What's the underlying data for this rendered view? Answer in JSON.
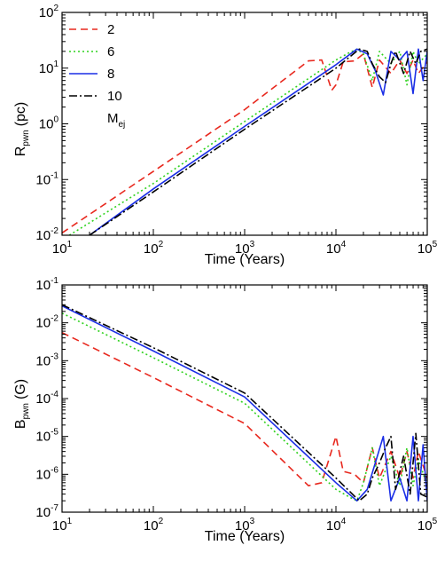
{
  "chart_data": [
    {
      "type": "line",
      "title": "",
      "xlabel": "Time (Years)",
      "ylabel": {
        "main": "R",
        "sub": "pwn",
        "unit": "(pc)"
      },
      "xscale": "log",
      "yscale": "log",
      "xlim": [
        10,
        100000
      ],
      "ylim": [
        0.01,
        100
      ],
      "xticks": [
        {
          "base": "10",
          "exp": "1",
          "value": 10
        },
        {
          "base": "10",
          "exp": "2",
          "value": 100
        },
        {
          "base": "10",
          "exp": "3",
          "value": 1000
        },
        {
          "base": "10",
          "exp": "4",
          "value": 10000
        },
        {
          "base": "10",
          "exp": "5",
          "value": 100000
        }
      ],
      "yticks": [
        {
          "base": "10",
          "exp": "-2",
          "value": 0.01
        },
        {
          "base": "10",
          "exp": "-1",
          "value": 0.1
        },
        {
          "base": "10",
          "exp": "0",
          "value": 1
        },
        {
          "base": "10",
          "exp": "1",
          "value": 10
        },
        {
          "base": "10",
          "exp": "2",
          "value": 100
        }
      ],
      "legend": {
        "placement": "top-left",
        "title": {
          "main": "M",
          "sub": "ej"
        }
      },
      "series": [
        {
          "name": "2",
          "color": "#e8281e",
          "dash": "dashed",
          "x": [
            10,
            100,
            1000,
            5000,
            7000,
            9000,
            10000,
            12000,
            16000,
            20000,
            25000,
            30000,
            40000,
            50000,
            60000,
            70000,
            80000,
            100000
          ],
          "y": [
            0.011,
            0.14,
            1.8,
            13.5,
            14,
            4,
            5,
            13,
            13.5,
            18,
            4.5,
            14,
            8,
            14,
            8,
            14,
            8,
            13
          ]
        },
        {
          "name": "6",
          "color": "#2fd21e",
          "dash": "dotted",
          "x": [
            12,
            100,
            1000,
            10000,
            14000,
            17000,
            20000,
            25000,
            30000,
            40000,
            50000,
            60000,
            70000,
            80000,
            100000
          ],
          "y": [
            0.01,
            0.085,
            1.1,
            14,
            19,
            22,
            18,
            6,
            20,
            12,
            20,
            5,
            20,
            12,
            18
          ]
        },
        {
          "name": "8",
          "color": "#1a2ee6",
          "dash": "solid",
          "x": [
            20,
            100,
            1000,
            10000,
            17000,
            22000,
            27000,
            33000,
            40000,
            50000,
            60000,
            70000,
            80000,
            90000,
            100000
          ],
          "y": [
            0.01,
            0.068,
            0.9,
            11.5,
            22,
            18,
            9,
            3.3,
            20,
            14,
            20,
            3.5,
            22,
            6,
            20
          ]
        },
        {
          "name": "10",
          "color": "#000000",
          "dash": "dashdot",
          "x": [
            20,
            100,
            1000,
            10000,
            18000,
            22000,
            25000,
            30000,
            35000,
            40000,
            45000,
            55000,
            65000,
            75000,
            85000,
            100000
          ],
          "y": [
            0.01,
            0.06,
            0.8,
            10,
            22,
            20,
            12,
            7,
            5.5,
            12,
            20,
            8,
            20,
            12,
            20,
            22
          ]
        }
      ]
    },
    {
      "type": "line",
      "title": "",
      "xlabel": "Time (Years)",
      "ylabel": {
        "main": "B",
        "sub": "pwn",
        "unit": "(G)"
      },
      "xscale": "log",
      "yscale": "log",
      "xlim": [
        10,
        100000
      ],
      "ylim": [
        1e-07,
        0.1
      ],
      "xticks": [
        {
          "base": "10",
          "exp": "1",
          "value": 10
        },
        {
          "base": "10",
          "exp": "2",
          "value": 100
        },
        {
          "base": "10",
          "exp": "3",
          "value": 1000
        },
        {
          "base": "10",
          "exp": "4",
          "value": 10000
        },
        {
          "base": "10",
          "exp": "5",
          "value": 100000
        }
      ],
      "yticks": [
        {
          "base": "10",
          "exp": "-7",
          "value": 1e-07
        },
        {
          "base": "10",
          "exp": "-6",
          "value": 1e-06
        },
        {
          "base": "10",
          "exp": "-5",
          "value": 1e-05
        },
        {
          "base": "10",
          "exp": "-4",
          "value": 0.0001
        },
        {
          "base": "10",
          "exp": "-3",
          "value": 0.001
        },
        {
          "base": "10",
          "exp": "-2",
          "value": 0.01
        },
        {
          "base": "10",
          "exp": "-1",
          "value": 0.1
        }
      ],
      "series": [
        {
          "name": "2",
          "color": "#e8281e",
          "dash": "dashed",
          "x": [
            10,
            100,
            1000,
            5000,
            7000,
            10000,
            12000,
            16000,
            20000,
            25000,
            30000,
            40000,
            50000,
            60000,
            70000,
            80000,
            100000
          ],
          "y": [
            0.0055,
            0.00036,
            2.2e-05,
            5e-07,
            6e-07,
            1e-05,
            1.2e-06,
            1e-06,
            6e-07,
            5e-06,
            8e-07,
            4e-06,
            8e-07,
            4e-06,
            8e-07,
            4e-06,
            8e-07
          ]
        },
        {
          "name": "6",
          "color": "#2fd21e",
          "dash": "dotted",
          "x": [
            10,
            100,
            1000,
            10000,
            14000,
            17000,
            20000,
            25000,
            30000,
            40000,
            50000,
            60000,
            70000,
            80000,
            100000
          ],
          "y": [
            0.018,
            0.0012,
            7.5e-05,
            4e-07,
            2.5e-07,
            2e-07,
            6e-07,
            5e-06,
            5e-07,
            3e-06,
            5e-07,
            5e-06,
            5e-07,
            2.5e-06,
            5e-07
          ]
        },
        {
          "name": "8",
          "color": "#1a2ee6",
          "dash": "solid",
          "x": [
            10,
            100,
            1000,
            10000,
            17000,
            22000,
            27000,
            33000,
            40000,
            50000,
            60000,
            70000,
            80000,
            90000,
            100000
          ],
          "y": [
            0.028,
            0.0018,
            0.00011,
            6e-07,
            2e-07,
            4e-07,
            2e-06,
            1e-05,
            2e-07,
            8e-07,
            2e-07,
            1e-05,
            2e-07,
            6e-06,
            2e-07
          ]
        },
        {
          "name": "10",
          "color": "#000000",
          "dash": "dashdot",
          "x": [
            10,
            100,
            1000,
            10000,
            18000,
            22000,
            25000,
            30000,
            35000,
            40000,
            45000,
            55000,
            65000,
            75000,
            85000,
            100000
          ],
          "y": [
            0.03,
            0.0022,
            0.00014,
            8e-07,
            2e-07,
            3e-07,
            8e-07,
            2e-06,
            5e-06,
            1e-05,
            4e-07,
            3e-06,
            3e-07,
            1.2e-05,
            3e-07,
            2.5e-07
          ]
        }
      ]
    }
  ]
}
